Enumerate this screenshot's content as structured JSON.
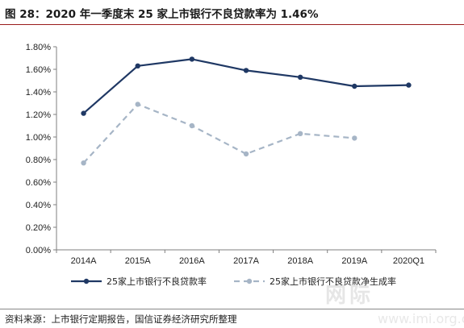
{
  "figure_title": "图 28：2020 年一季度末 25 家上市银行不良贷款率为 1.46%",
  "source_note": "资料来源：上市银行定期报告，国信证券经济研究所整理",
  "watermark": "网际",
  "watermark_url": "www.imi.org.cn",
  "chart_data": {
    "type": "line",
    "categories": [
      "2014A",
      "2015A",
      "2016A",
      "2017A",
      "2018A",
      "2019A",
      "2020Q1"
    ],
    "ylim": [
      0,
      1.8
    ],
    "yticks": [
      "0.00%",
      "0.20%",
      "0.40%",
      "0.60%",
      "0.80%",
      "1.00%",
      "1.20%",
      "1.40%",
      "1.60%",
      "1.80%"
    ],
    "y_unit": "%",
    "grid": false,
    "legend_position": "bottom",
    "series": [
      {
        "name": "25家上市银行不良贷款率",
        "values": [
          1.21,
          1.63,
          1.69,
          1.59,
          1.53,
          1.45,
          1.46
        ],
        "color": "#1f3864",
        "style": "solid"
      },
      {
        "name": "25家上市银行不良贷款净生成率",
        "values": [
          0.77,
          1.29,
          1.1,
          0.85,
          1.03,
          0.99,
          null
        ],
        "color": "#a6b5c6",
        "style": "dashed"
      }
    ]
  }
}
